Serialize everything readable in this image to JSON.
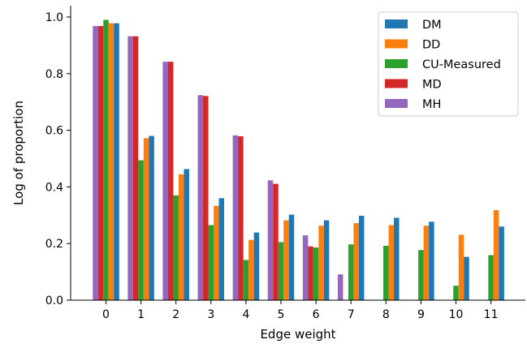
{
  "chart_data": {
    "type": "bar",
    "xlabel": "Edge weight",
    "ylabel": "Log of proportion",
    "ylim": [
      0,
      1.04
    ],
    "yticks": [
      "0.0",
      "0.2",
      "0.4",
      "0.6",
      "0.8",
      "1.0"
    ],
    "categories": [
      "0",
      "1",
      "2",
      "3",
      "4",
      "5",
      "6",
      "7",
      "8",
      "9",
      "10",
      "11"
    ],
    "grid": false,
    "legend_position": "top-right",
    "series": [
      {
        "name": "MH",
        "color": "#9467bd",
        "values": [
          0.968,
          0.932,
          0.842,
          0.724,
          0.582,
          0.423,
          0.229,
          0.091,
          null,
          null,
          null,
          null
        ]
      },
      {
        "name": "MD",
        "color": "#d62728",
        "values": [
          0.968,
          0.932,
          0.842,
          0.721,
          0.579,
          0.411,
          0.19,
          null,
          null,
          null,
          null,
          null
        ]
      },
      {
        "name": "CU-Measured",
        "color": "#2ca02c",
        "values": [
          0.99,
          0.494,
          0.37,
          0.265,
          0.142,
          0.205,
          0.186,
          0.197,
          0.192,
          0.177,
          0.051,
          0.159
        ]
      },
      {
        "name": "DD",
        "color": "#ff7f0e",
        "values": [
          0.978,
          0.572,
          0.444,
          0.333,
          0.213,
          0.282,
          0.263,
          0.272,
          0.265,
          0.263,
          0.231,
          0.318
        ]
      },
      {
        "name": "DM",
        "color": "#1f77b4",
        "values": [
          0.978,
          0.58,
          0.463,
          0.36,
          0.239,
          0.302,
          0.282,
          0.298,
          0.291,
          0.277,
          0.153,
          0.26
        ]
      }
    ],
    "legend_order": [
      "DM",
      "DD",
      "CU-Measured",
      "MD",
      "MH"
    ]
  }
}
